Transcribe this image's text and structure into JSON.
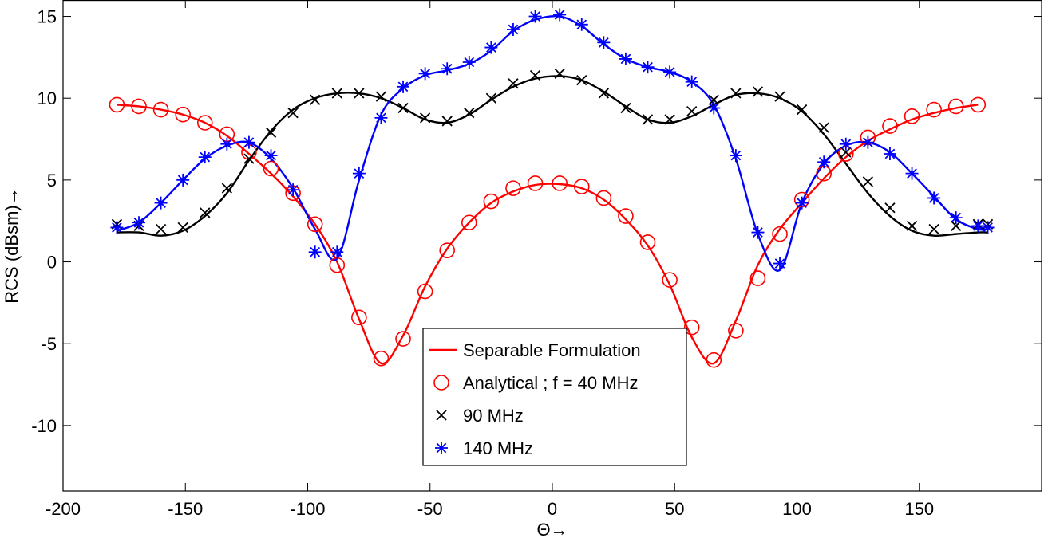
{
  "chart_data": {
    "type": "line",
    "title": "",
    "xlabel": "Θ→",
    "ylabel": "RCS (dBsm)→",
    "xlim": [
      -200,
      200
    ],
    "ylim": [
      -14,
      16
    ],
    "xticks": [
      -200,
      -150,
      -100,
      -50,
      0,
      50,
      100,
      150
    ],
    "yticks": [
      -10,
      -5,
      0,
      5,
      10,
      15
    ],
    "grid": false,
    "legend_position": "bottom-center",
    "legend": [
      {
        "label": "Separable Formulation",
        "marker": "line",
        "color": "#ff0000"
      },
      {
        "label": "Analytical ; f = 40 MHz",
        "marker": "circle",
        "color": "#ff0000"
      },
      {
        "label": "90 MHz",
        "marker": "cross",
        "color": "#000000"
      },
      {
        "label": "140 MHz",
        "marker": "asterisk",
        "color": "#0000ff"
      }
    ],
    "series": [
      {
        "freq": "40 MHz",
        "color": "#ff0000",
        "marker": "circle",
        "x": [
          -178,
          -169,
          -160,
          -151,
          -142,
          -133,
          -124,
          -115,
          -106,
          -97,
          -88,
          -79,
          -70,
          -61,
          -52,
          -43,
          -34,
          -25,
          -16,
          -7,
          3,
          12,
          21,
          30,
          39,
          48,
          57,
          66,
          75,
          84,
          93,
          102,
          111,
          120,
          129,
          138,
          147,
          156,
          165,
          174
        ],
        "curve": [
          9.6,
          9.5,
          9.3,
          9.0,
          8.5,
          7.7,
          6.6,
          5.4,
          4.0,
          2.3,
          0.0,
          -3.5,
          -6.2,
          -4.5,
          -1.5,
          0.8,
          2.4,
          3.6,
          4.3,
          4.7,
          4.75,
          4.5,
          3.8,
          2.6,
          1.0,
          -1.4,
          -4.6,
          -6.2,
          -3.6,
          -0.2,
          2.0,
          3.6,
          5.1,
          6.4,
          7.4,
          8.1,
          8.7,
          9.1,
          9.4,
          9.6
        ],
        "markers": [
          9.6,
          9.5,
          9.3,
          9.0,
          8.5,
          7.8,
          6.7,
          5.7,
          4.2,
          2.3,
          -0.2,
          -3.4,
          -5.9,
          -4.7,
          -1.8,
          0.7,
          2.4,
          3.7,
          4.5,
          4.8,
          4.8,
          4.6,
          3.9,
          2.8,
          1.2,
          -1.1,
          -4.0,
          -6.0,
          -4.2,
          -1.0,
          1.7,
          3.8,
          5.4,
          6.6,
          7.6,
          8.3,
          8.9,
          9.3,
          9.5,
          9.6
        ]
      },
      {
        "freq": "90 MHz",
        "color": "#000000",
        "marker": "cross",
        "x": [
          -178,
          -169,
          -160,
          -151,
          -142,
          -133,
          -124,
          -115,
          -106,
          -97,
          -88,
          -79,
          -70,
          -61,
          -52,
          -43,
          -34,
          -25,
          -16,
          -7,
          3,
          12,
          21,
          30,
          39,
          48,
          57,
          66,
          75,
          84,
          93,
          102,
          111,
          120,
          129,
          138,
          147,
          156,
          165,
          174,
          178
        ],
        "curve": [
          1.8,
          1.8,
          1.6,
          1.9,
          2.8,
          4.2,
          6.2,
          8.0,
          9.3,
          10.0,
          10.3,
          10.3,
          10.0,
          9.4,
          8.7,
          8.5,
          9.0,
          9.9,
          10.7,
          11.2,
          11.35,
          11.1,
          10.4,
          9.5,
          8.7,
          8.5,
          8.9,
          9.6,
          10.2,
          10.3,
          10.0,
          9.2,
          7.8,
          6.0,
          4.2,
          2.8,
          1.9,
          1.6,
          1.7,
          1.8,
          1.8
        ],
        "markers": [
          2.3,
          2.2,
          2.0,
          2.1,
          3.0,
          4.5,
          6.3,
          7.9,
          9.1,
          9.9,
          10.3,
          10.3,
          10.1,
          9.4,
          8.8,
          8.6,
          9.1,
          10.0,
          10.9,
          11.4,
          11.5,
          11.1,
          10.3,
          9.4,
          8.7,
          8.7,
          9.2,
          9.9,
          10.3,
          10.4,
          10.1,
          9.3,
          8.2,
          6.7,
          4.9,
          3.3,
          2.2,
          2.0,
          2.2,
          2.3,
          2.3
        ]
      },
      {
        "freq": "140 MHz",
        "color": "#0000ff",
        "marker": "asterisk",
        "x": [
          -178,
          -169,
          -160,
          -151,
          -142,
          -133,
          -124,
          -115,
          -106,
          -97,
          -88,
          -79,
          -70,
          -61,
          -52,
          -43,
          -34,
          -25,
          -16,
          -7,
          3,
          12,
          21,
          30,
          39,
          48,
          57,
          66,
          75,
          84,
          93,
          102,
          111,
          120,
          129,
          138,
          147,
          156,
          165,
          174,
          178
        ],
        "curve": [
          1.9,
          2.4,
          3.6,
          5.0,
          6.3,
          7.1,
          7.3,
          6.3,
          4.5,
          2.0,
          0.2,
          5.0,
          9.0,
          10.6,
          11.4,
          11.7,
          12.1,
          12.9,
          14.1,
          14.8,
          15.0,
          14.4,
          13.3,
          12.4,
          11.9,
          11.6,
          11.0,
          9.6,
          6.3,
          1.7,
          -0.5,
          3.6,
          6.0,
          7.1,
          7.3,
          6.7,
          5.4,
          4.0,
          2.6,
          2.0,
          2.0
        ],
        "markers": [
          2.1,
          2.4,
          3.6,
          5.0,
          6.4,
          7.2,
          7.3,
          6.5,
          4.4,
          0.6,
          0.6,
          5.4,
          8.8,
          10.7,
          11.5,
          11.8,
          12.2,
          13.1,
          14.2,
          15.0,
          15.1,
          14.5,
          13.4,
          12.4,
          11.9,
          11.6,
          11.0,
          9.4,
          6.5,
          1.8,
          -0.1,
          3.6,
          6.1,
          7.2,
          7.3,
          6.6,
          5.4,
          3.9,
          2.7,
          2.2,
          2.1
        ]
      }
    ]
  }
}
